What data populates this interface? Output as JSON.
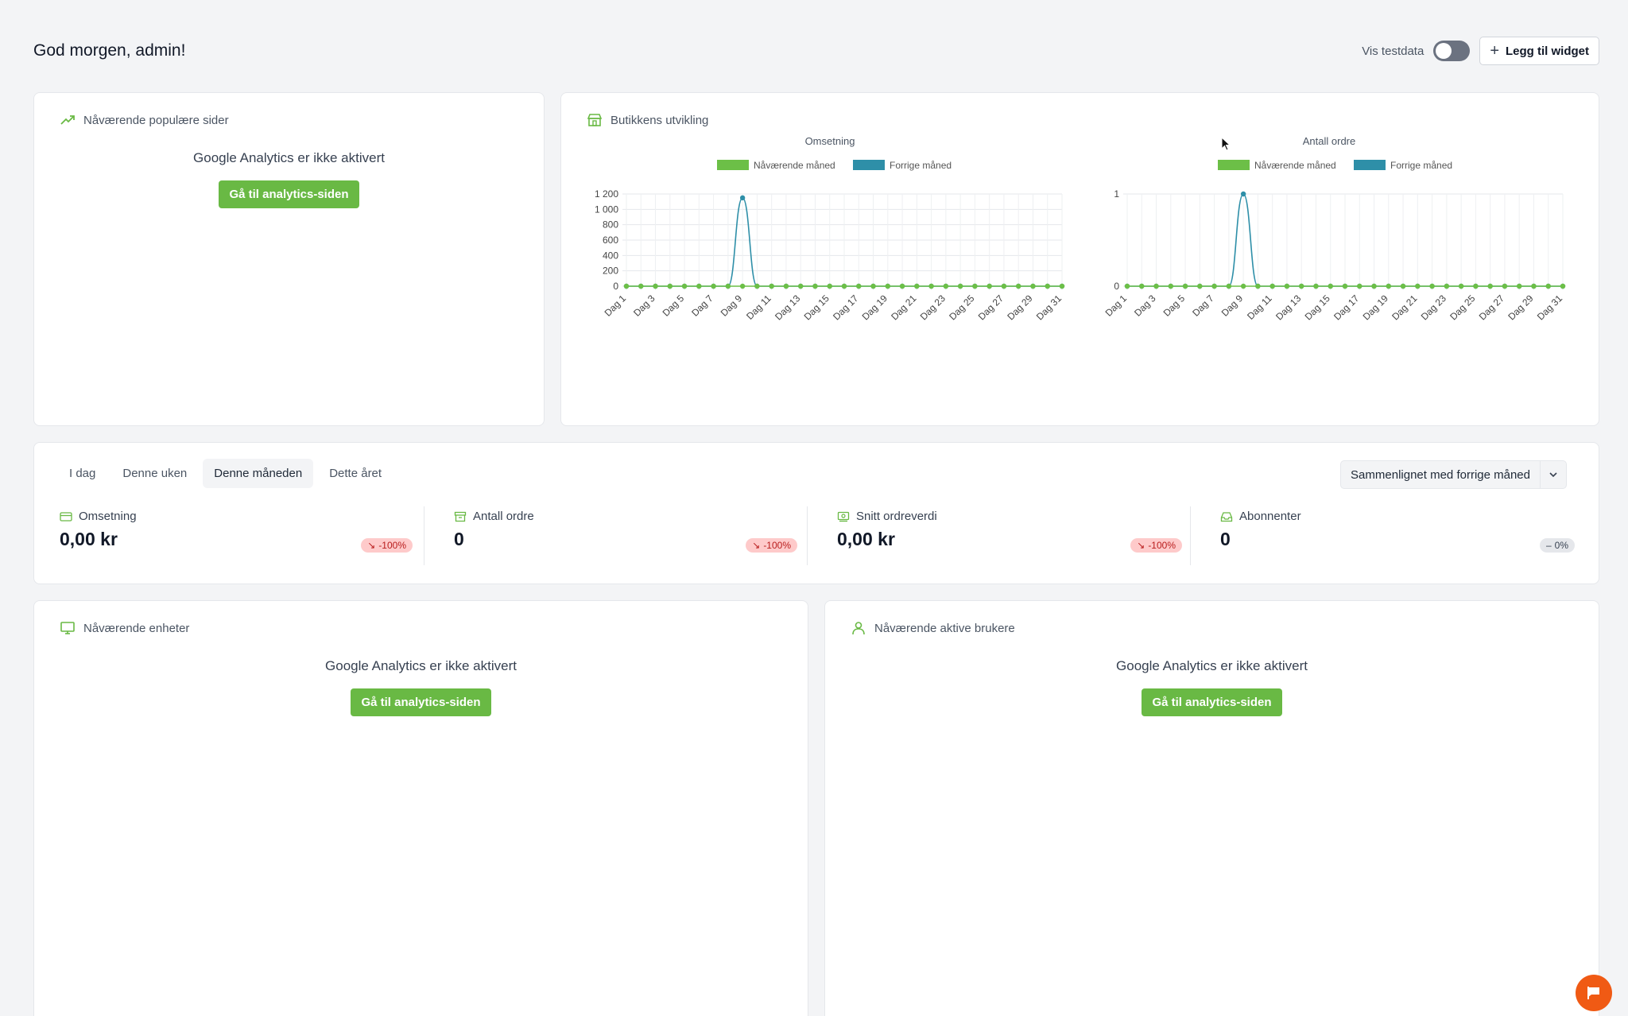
{
  "header": {
    "greeting": "God morgen, admin!",
    "toggle_label": "Vis testdata",
    "add_widget_label": "Legg til widget"
  },
  "popular_pages": {
    "title": "Nåværende populære sider",
    "ga_message": "Google Analytics er ikke aktivert",
    "button_label": "Gå til analytics-siden"
  },
  "store_dev": {
    "title": "Butikkens utvikling"
  },
  "chart_data": [
    {
      "type": "line",
      "title": "Omsetning",
      "x": [
        "Dag 1",
        "Dag 2",
        "Dag 3",
        "Dag 4",
        "Dag 5",
        "Dag 6",
        "Dag 7",
        "Dag 8",
        "Dag 9",
        "Dag 10",
        "Dag 11",
        "Dag 12",
        "Dag 13",
        "Dag 14",
        "Dag 15",
        "Dag 16",
        "Dag 17",
        "Dag 18",
        "Dag 19",
        "Dag 20",
        "Dag 21",
        "Dag 22",
        "Dag 23",
        "Dag 24",
        "Dag 25",
        "Dag 26",
        "Dag 27",
        "Dag 28",
        "Dag 29",
        "Dag 30",
        "Dag 31"
      ],
      "x_tick_labels": [
        "Dag 1",
        "Dag 3",
        "Dag 5",
        "Dag 7",
        "Dag 9",
        "Dag 11",
        "Dag 13",
        "Dag 15",
        "Dag 17",
        "Dag 19",
        "Dag 21",
        "Dag 23",
        "Dag 25",
        "Dag 27",
        "Dag 29",
        "Dag 31"
      ],
      "y_tick_labels": [
        "1 200",
        "1 000",
        "800",
        "600",
        "400",
        "200",
        "0"
      ],
      "ylim": [
        0,
        1200
      ],
      "series": [
        {
          "name": "Nåværende måned",
          "color": "#6cbf47",
          "values": [
            0,
            0,
            0,
            0,
            0,
            0,
            0,
            0,
            0,
            0,
            0,
            0,
            0,
            0,
            0,
            0,
            0,
            0,
            0,
            0,
            0,
            0,
            0,
            0,
            0,
            0,
            0,
            0,
            0,
            0,
            0
          ]
        },
        {
          "name": "Forrige måned",
          "color": "#2e8fa8",
          "values": [
            0,
            0,
            0,
            0,
            0,
            0,
            0,
            0,
            1150,
            0,
            0,
            0,
            0,
            0,
            0,
            0,
            0,
            0,
            0,
            0,
            0,
            0,
            0,
            0,
            0,
            0,
            0,
            0,
            0,
            0,
            0
          ]
        }
      ],
      "legend": "top",
      "grid": true
    },
    {
      "type": "line",
      "title": "Antall ordre",
      "x": [
        "Dag 1",
        "Dag 2",
        "Dag 3",
        "Dag 4",
        "Dag 5",
        "Dag 6",
        "Dag 7",
        "Dag 8",
        "Dag 9",
        "Dag 10",
        "Dag 11",
        "Dag 12",
        "Dag 13",
        "Dag 14",
        "Dag 15",
        "Dag 16",
        "Dag 17",
        "Dag 18",
        "Dag 19",
        "Dag 20",
        "Dag 21",
        "Dag 22",
        "Dag 23",
        "Dag 24",
        "Dag 25",
        "Dag 26",
        "Dag 27",
        "Dag 28",
        "Dag 29",
        "Dag 30",
        "Dag 31"
      ],
      "x_tick_labels": [
        "Dag 1",
        "Dag 3",
        "Dag 5",
        "Dag 7",
        "Dag 9",
        "Dag 11",
        "Dag 13",
        "Dag 15",
        "Dag 17",
        "Dag 19",
        "Dag 21",
        "Dag 23",
        "Dag 25",
        "Dag 27",
        "Dag 29",
        "Dag 31"
      ],
      "y_tick_labels": [
        "1",
        "0"
      ],
      "ylim": [
        0,
        1
      ],
      "series": [
        {
          "name": "Nåværende måned",
          "color": "#6cbf47",
          "values": [
            0,
            0,
            0,
            0,
            0,
            0,
            0,
            0,
            0,
            0,
            0,
            0,
            0,
            0,
            0,
            0,
            0,
            0,
            0,
            0,
            0,
            0,
            0,
            0,
            0,
            0,
            0,
            0,
            0,
            0,
            0
          ]
        },
        {
          "name": "Forrige måned",
          "color": "#2e8fa8",
          "values": [
            0,
            0,
            0,
            0,
            0,
            0,
            0,
            0,
            1,
            0,
            0,
            0,
            0,
            0,
            0,
            0,
            0,
            0,
            0,
            0,
            0,
            0,
            0,
            0,
            0,
            0,
            0,
            0,
            0,
            0,
            0
          ]
        }
      ],
      "legend": "top",
      "grid": true
    }
  ],
  "period": {
    "tabs": [
      "I dag",
      "Denne uken",
      "Denne måneden",
      "Dette året"
    ],
    "active_tab": "Denne måneden",
    "compare_label": "Sammenlignet med forrige måned"
  },
  "stats": [
    {
      "label": "Omsetning",
      "value": "0,00 kr",
      "change": "-100%",
      "trend": "down"
    },
    {
      "label": "Antall ordre",
      "value": "0",
      "change": "-100%",
      "trend": "down"
    },
    {
      "label": "Snitt ordreverdi",
      "value": "0,00 kr",
      "change": "-100%",
      "trend": "down"
    },
    {
      "label": "Abonnenter",
      "value": "0",
      "change": "0%",
      "trend": "flat"
    }
  ],
  "devices": {
    "title": "Nåværende enheter",
    "ga_message": "Google Analytics er ikke aktivert",
    "button_label": "Gå til analytics-siden"
  },
  "active_users": {
    "title": "Nåværende aktive brukere",
    "ga_message": "Google Analytics er ikke aktivert",
    "button_label": "Gå til analytics-siden"
  },
  "colors": {
    "accent_green": "#69b944",
    "series_blue": "#2e8fa8",
    "negative": "#b91c1c",
    "chat": "#f05a14"
  }
}
